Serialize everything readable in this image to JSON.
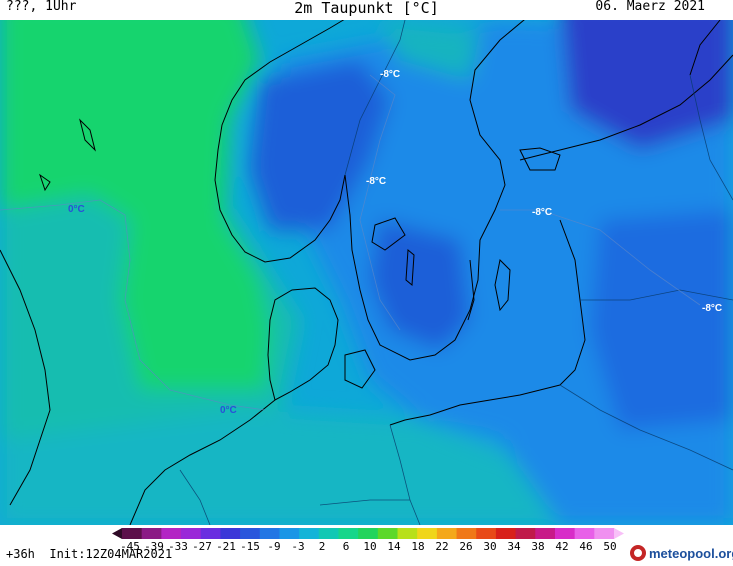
{
  "header": {
    "left": "???, 1Uhr",
    "title": "2m Taupunkt [°C]",
    "date": "06. Maerz 2021"
  },
  "map": {
    "contour_labels": {
      "zero_west": "0°C",
      "zero_south": "0°C",
      "minus8_a": "-8°C",
      "minus8_b": "-8°C",
      "minus8_c": "-8°C",
      "minus8_d": "-8°C"
    },
    "colors": {
      "warm_zero": "#17d46e",
      "teal": "#13bdb0",
      "cyan": "#0ea8d8",
      "blue": "#1a8ae8",
      "dark_blue": "#1f5ed8",
      "deep_blue": "#2a3fc9"
    }
  },
  "colorbar": {
    "ticks": [
      "-45",
      "-39",
      "-33",
      "-27",
      "-21",
      "-15",
      "-9",
      "-3",
      "2",
      "6",
      "10",
      "14",
      "18",
      "22",
      "26",
      "30",
      "34",
      "38",
      "42",
      "46",
      "50"
    ],
    "colors": [
      "#2e0a26",
      "#5c0f4a",
      "#8b1a85",
      "#b324c4",
      "#9a28d8",
      "#6a2ee0",
      "#3b37d8",
      "#2a56dc",
      "#2276e4",
      "#1a96e6",
      "#14b4d8",
      "#12c8b4",
      "#16d68a",
      "#22d45c",
      "#5cd82a",
      "#b8e01a",
      "#f0d61a",
      "#f4a81a",
      "#f07818",
      "#e84a18",
      "#d8201a",
      "#c01a4a",
      "#c81a88",
      "#d82cc8",
      "#e860e8",
      "#f090f0",
      "#f8c0f8"
    ]
  },
  "footer": {
    "run_info": "+36h  Init:12Z04MAR2021",
    "brand": "meteopool.org"
  }
}
